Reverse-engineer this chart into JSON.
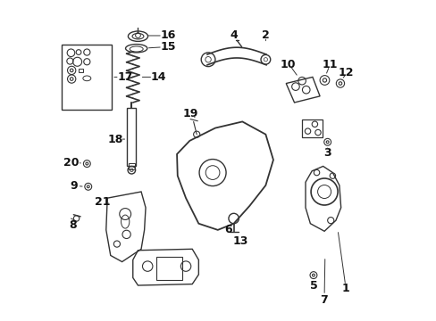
{
  "title": "",
  "background_color": "#ffffff",
  "figsize": [
    4.89,
    3.6
  ],
  "dpi": 100,
  "line_color": "#333333",
  "text_color": "#111111",
  "font_size": 8
}
